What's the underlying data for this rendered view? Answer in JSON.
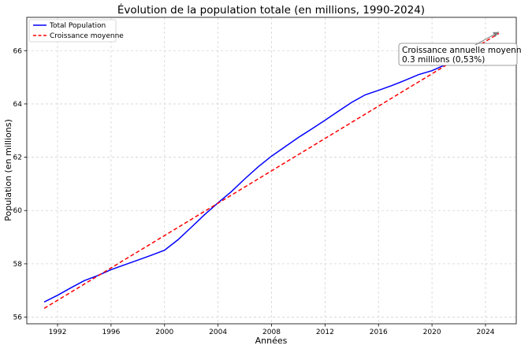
{
  "chart_data": {
    "type": "line",
    "title": "Évolution de la population totale (en millions, 1990-2024)",
    "xlabel": "Années",
    "ylabel": "Population (en millions)",
    "xlim": [
      1989.7,
      2026.3
    ],
    "ylim": [
      55.75,
      67.25
    ],
    "xticks": [
      1992,
      1996,
      2000,
      2004,
      2008,
      2012,
      2016,
      2020,
      2024
    ],
    "yticks": [
      56,
      58,
      60,
      62,
      64,
      66
    ],
    "grid": true,
    "legend_position": "top-left",
    "series": [
      {
        "name": "Total Population",
        "color": "#0000ff",
        "style": "solid",
        "x": [
          1991,
          1992,
          1993,
          1994,
          1995,
          1996,
          1997,
          1998,
          1999,
          2000,
          2001,
          2002,
          2003,
          2004,
          2005,
          2006,
          2007,
          2008,
          2009,
          2010,
          2011,
          2012,
          2013,
          2014,
          2015,
          2016,
          2017,
          2018,
          2019,
          2020,
          2021,
          2022,
          2023,
          2024
        ],
        "y": [
          56.57,
          56.82,
          57.1,
          57.37,
          57.56,
          57.78,
          57.96,
          58.14,
          58.32,
          58.51,
          58.9,
          59.37,
          59.85,
          60.29,
          60.71,
          61.19,
          61.64,
          62.04,
          62.39,
          62.74,
          63.06,
          63.39,
          63.73,
          64.06,
          64.34,
          64.51,
          64.69,
          64.89,
          65.1,
          65.25,
          65.47,
          65.72,
          66.0,
          66.27
        ]
      },
      {
        "name": "Croissance moyenne",
        "color": "#ff0000",
        "style": "dashed",
        "x": [
          1991,
          2025
        ],
        "y": [
          56.33,
          66.65
        ]
      }
    ],
    "annotation": {
      "text_line1": "Croissance annuelle moyenne :",
      "text_line2": "0.3 millions (0,53%)",
      "arrow_to_x": 2025,
      "arrow_to_y": 66.7,
      "arrow_color": "#808080"
    }
  }
}
